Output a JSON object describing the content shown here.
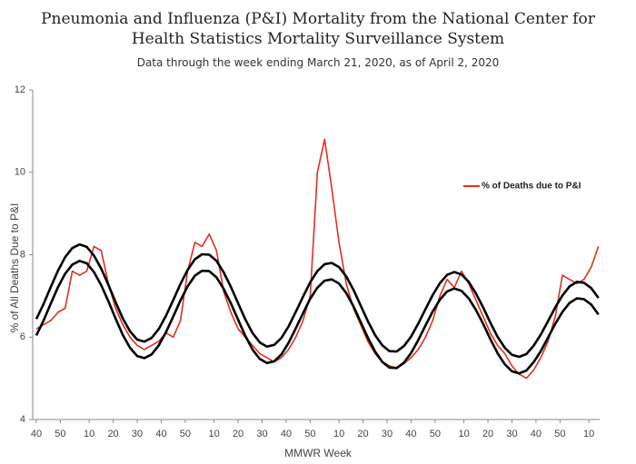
{
  "chart_data": {
    "type": "line",
    "title": "Pneumonia and Influenza (P&I) Mortality from the National Center for Health Statistics Mortality Surveillance System",
    "subtitle": "Data through the week ending March 21, 2020, as of April 2, 2020",
    "x_label": "MMWR Week",
    "y_label": "% of All Deaths Due to P&I",
    "legend_position": "upper right",
    "xlim": [
      -1.5,
      234.5
    ],
    "ylim": [
      4,
      12
    ],
    "yticks": [
      4,
      6,
      8,
      10,
      12
    ],
    "xticks": [
      {
        "value": 0,
        "label": "40"
      },
      {
        "value": 10,
        "label": "50"
      },
      {
        "value": 22,
        "label": "10"
      },
      {
        "value": 32,
        "label": "20"
      },
      {
        "value": 42,
        "label": "30"
      },
      {
        "value": 52,
        "label": "40"
      },
      {
        "value": 62,
        "label": "50"
      },
      {
        "value": 74,
        "label": "10"
      },
      {
        "value": 84,
        "label": "20"
      },
      {
        "value": 94,
        "label": "30"
      },
      {
        "value": 104,
        "label": "40"
      },
      {
        "value": 114,
        "label": "50"
      },
      {
        "value": 126,
        "label": "10"
      },
      {
        "value": 136,
        "label": "20"
      },
      {
        "value": 146,
        "label": "30"
      },
      {
        "value": 156,
        "label": "40"
      },
      {
        "value": 166,
        "label": "50"
      },
      {
        "value": 178,
        "label": "10"
      },
      {
        "value": 188,
        "label": "20"
      },
      {
        "value": 198,
        "label": "30"
      },
      {
        "value": 208,
        "label": "40"
      },
      {
        "value": 218,
        "label": "50"
      },
      {
        "value": 230,
        "label": "10"
      }
    ],
    "x": [
      0,
      3,
      6,
      9,
      12,
      15,
      18,
      21,
      24,
      27,
      30,
      33,
      36,
      39,
      42,
      45,
      48,
      51,
      54,
      57,
      60,
      63,
      66,
      69,
      72,
      75,
      78,
      81,
      84,
      87,
      90,
      93,
      96,
      99,
      102,
      105,
      108,
      111,
      114,
      117,
      120,
      123,
      126,
      129,
      132,
      135,
      138,
      141,
      144,
      147,
      150,
      153,
      156,
      159,
      162,
      165,
      168,
      171,
      174,
      177,
      180,
      183,
      186,
      189,
      192,
      195,
      198,
      201,
      204,
      207,
      210,
      213,
      216,
      219,
      222,
      225,
      228,
      231,
      234
    ],
    "series": [
      {
        "name": "% of Deaths due to P&I",
        "color": "#e0301e",
        "width": 1.6,
        "values": [
          6.2,
          6.3,
          6.4,
          6.6,
          6.7,
          7.6,
          7.5,
          7.6,
          8.2,
          8.1,
          7.3,
          6.7,
          6.3,
          6.0,
          5.8,
          5.7,
          5.8,
          5.9,
          6.1,
          6.0,
          6.4,
          7.6,
          8.3,
          8.2,
          8.5,
          8.1,
          7.1,
          6.6,
          6.2,
          6.0,
          5.8,
          5.6,
          5.5,
          5.4,
          5.5,
          5.7,
          6.0,
          6.4,
          7.0,
          10.0,
          10.8,
          9.6,
          8.3,
          7.3,
          6.7,
          6.3,
          5.9,
          5.6,
          5.4,
          5.3,
          5.25,
          5.35,
          5.5,
          5.7,
          6.0,
          6.4,
          7.0,
          7.4,
          7.2,
          7.6,
          7.3,
          6.9,
          6.5,
          6.1,
          5.8,
          5.6,
          5.3,
          5.1,
          5.0,
          5.2,
          5.5,
          5.9,
          6.5,
          7.5,
          7.4,
          7.3,
          7.4,
          7.7,
          8.2
        ]
      },
      {
        "color": "#000000",
        "width": 2.6,
        "values": [
          6.44,
          6.8,
          7.21,
          7.61,
          7.94,
          8.16,
          8.25,
          8.19,
          7.98,
          7.66,
          7.27,
          6.85,
          6.45,
          6.14,
          5.94,
          5.89,
          5.98,
          6.2,
          6.52,
          6.9,
          7.29,
          7.63,
          7.89,
          8.01,
          8.0,
          7.85,
          7.57,
          7.22,
          6.82,
          6.43,
          6.1,
          5.87,
          5.77,
          5.81,
          5.98,
          6.26,
          6.61,
          6.98,
          7.33,
          7.6,
          7.77,
          7.8,
          7.7,
          7.47,
          7.15,
          6.77,
          6.39,
          6.05,
          5.8,
          5.66,
          5.65,
          5.78,
          6.01,
          6.33,
          6.68,
          7.02,
          7.31,
          7.51,
          7.58,
          7.52,
          7.34,
          7.06,
          6.72,
          6.35,
          6.01,
          5.74,
          5.57,
          5.52,
          5.59,
          5.79,
          6.06,
          6.39,
          6.72,
          7.01,
          7.23,
          7.34,
          7.32,
          7.19,
          6.95
        ]
      },
      {
        "color": "#000000",
        "width": 2.6,
        "values": [
          6.04,
          6.4,
          6.81,
          7.21,
          7.54,
          7.76,
          7.85,
          7.79,
          7.58,
          7.26,
          6.87,
          6.45,
          6.05,
          5.74,
          5.54,
          5.49,
          5.58,
          5.8,
          6.12,
          6.5,
          6.89,
          7.23,
          7.49,
          7.61,
          7.6,
          7.45,
          7.17,
          6.82,
          6.42,
          6.03,
          5.7,
          5.47,
          5.37,
          5.41,
          5.58,
          5.86,
          6.21,
          6.58,
          6.93,
          7.2,
          7.37,
          7.4,
          7.3,
          7.07,
          6.75,
          6.37,
          5.99,
          5.65,
          5.4,
          5.26,
          5.25,
          5.38,
          5.61,
          5.93,
          6.28,
          6.62,
          6.91,
          7.11,
          7.18,
          7.12,
          6.94,
          6.66,
          6.32,
          5.95,
          5.61,
          5.34,
          5.17,
          5.12,
          5.19,
          5.39,
          5.66,
          5.99,
          6.32,
          6.61,
          6.83,
          6.94,
          6.92,
          6.79,
          6.55
        ]
      }
    ]
  }
}
